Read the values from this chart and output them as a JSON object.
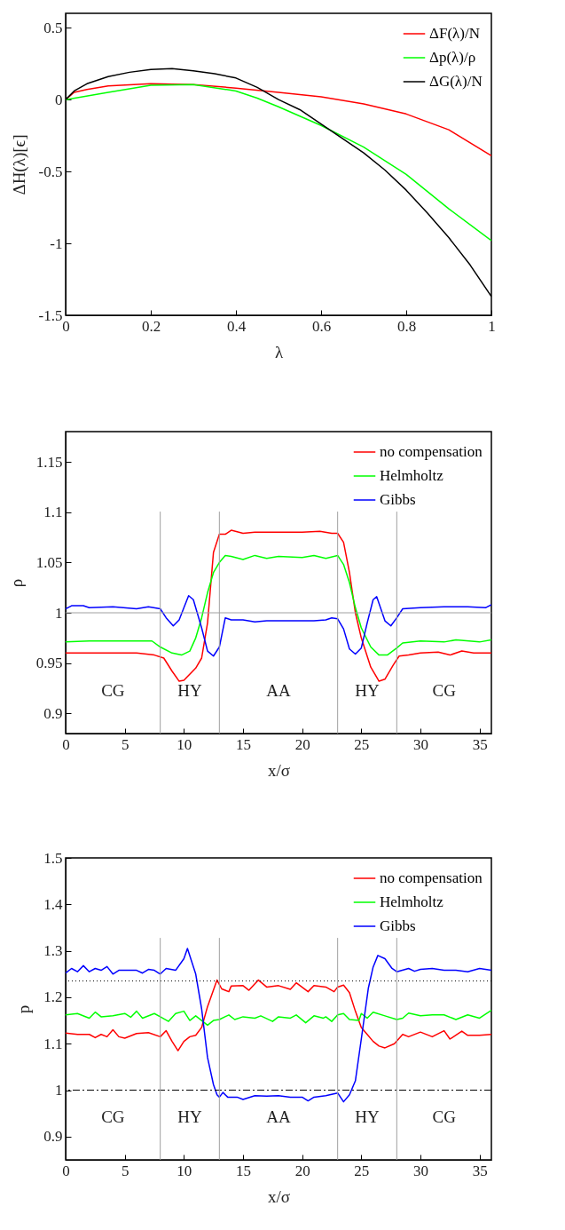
{
  "chart_data": [
    {
      "type": "line",
      "xlabel": "λ",
      "ylabel": "ΔH(λ)[ϵ]",
      "xlim": [
        0,
        1
      ],
      "ylim": [
        -1.5,
        0.6
      ],
      "xticks": [
        0,
        0.2,
        0.4,
        0.6,
        0.8,
        1
      ],
      "yticks": [
        -1.5,
        -1,
        -0.5,
        0,
        0.5
      ],
      "grid": false,
      "legend": "top right",
      "marker": "none",
      "series": [
        {
          "name": "ΔF(λ)/N",
          "color": "#ff0000",
          "x": [
            0,
            0.02,
            0.05,
            0.1,
            0.2,
            0.3,
            0.4,
            0.5,
            0.6,
            0.7,
            0.8,
            0.9,
            1
          ],
          "values": [
            0,
            0.05,
            0.07,
            0.095,
            0.11,
            0.105,
            0.08,
            0.05,
            0.02,
            -0.03,
            -0.1,
            -0.21,
            -0.39
          ]
        },
        {
          "name": "Δp(λ)/ρ",
          "color": "#00ff00",
          "x": [
            0,
            0.1,
            0.2,
            0.3,
            0.4,
            0.45,
            0.5,
            0.6,
            0.7,
            0.8,
            0.9,
            1
          ],
          "values": [
            0,
            0.05,
            0.1,
            0.105,
            0.06,
            0.01,
            -0.05,
            -0.18,
            -0.33,
            -0.52,
            -0.76,
            -0.98
          ]
        },
        {
          "name": "ΔG(λ)/N",
          "color": "#000000",
          "x": [
            0,
            0.02,
            0.05,
            0.1,
            0.15,
            0.2,
            0.25,
            0.3,
            0.35,
            0.4,
            0.45,
            0.5,
            0.55,
            0.6,
            0.65,
            0.7,
            0.75,
            0.8,
            0.85,
            0.9,
            0.95,
            1
          ],
          "values": [
            0,
            0.06,
            0.11,
            0.16,
            0.19,
            0.21,
            0.215,
            0.2,
            0.18,
            0.15,
            0.085,
            0,
            -0.07,
            -0.17,
            -0.27,
            -0.37,
            -0.49,
            -0.63,
            -0.79,
            -0.96,
            -1.15,
            -1.37
          ]
        }
      ]
    },
    {
      "type": "line",
      "xlabel": "x/σ",
      "ylabel": "ρ",
      "xlim": [
        0,
        36
      ],
      "ylim": [
        0.88,
        1.18
      ],
      "xticks": [
        0,
        5,
        10,
        15,
        20,
        25,
        30,
        35
      ],
      "yticks": [
        0.9,
        0.95,
        1,
        1.05,
        1.1,
        1.15
      ],
      "grid": false,
      "legend": "top right",
      "marker": "none",
      "ref_lines": [
        {
          "axis": "y",
          "value": 1,
          "color": "#a0a0a0"
        },
        {
          "axis": "x",
          "value": 8,
          "color": "#a0a0a0"
        },
        {
          "axis": "x",
          "value": 13,
          "color": "#a0a0a0"
        },
        {
          "axis": "x",
          "value": 23,
          "color": "#a0a0a0"
        },
        {
          "axis": "x",
          "value": 28,
          "color": "#a0a0a0"
        }
      ],
      "annotations": [
        "CG",
        "HY",
        "AA",
        "HY",
        "CG"
      ],
      "series": [
        {
          "name": "no compensation",
          "color": "#ff0000",
          "x": [
            0,
            2,
            4,
            6,
            7.5,
            8.3,
            9,
            9.6,
            10,
            11,
            11.5,
            12,
            12.5,
            13,
            13.5,
            14,
            15,
            16,
            18,
            20,
            21.5,
            22.5,
            23,
            23.5,
            24,
            24.5,
            25,
            25.8,
            26.5,
            27,
            27.7,
            28.2,
            29,
            30,
            31.5,
            32.5,
            33.5,
            34.5,
            36
          ],
          "values": [
            0.96,
            0.96,
            0.96,
            0.96,
            0.958,
            0.955,
            0.942,
            0.932,
            0.933,
            0.945,
            0.955,
            0.99,
            1.06,
            1.078,
            1.078,
            1.082,
            1.079,
            1.08,
            1.08,
            1.08,
            1.081,
            1.079,
            1.079,
            1.07,
            1.04,
            1.0,
            0.975,
            0.946,
            0.932,
            0.934,
            0.948,
            0.957,
            0.958,
            0.96,
            0.961,
            0.958,
            0.962,
            0.96,
            0.96
          ]
        },
        {
          "name": "Helmholtz",
          "color": "#00ff00",
          "x": [
            0,
            2,
            5,
            7.3,
            8,
            9,
            9.8,
            10.5,
            11,
            11.5,
            12,
            12.5,
            13,
            13.5,
            14,
            15,
            16,
            17,
            18,
            20,
            21,
            22,
            23,
            23.5,
            24,
            24.5,
            25,
            25.8,
            26.5,
            27.2,
            28,
            28.5,
            30,
            32,
            33,
            35,
            36
          ],
          "values": [
            0.971,
            0.972,
            0.972,
            0.972,
            0.966,
            0.96,
            0.958,
            0.962,
            0.975,
            0.995,
            1.02,
            1.04,
            1.05,
            1.057,
            1.056,
            1.053,
            1.057,
            1.054,
            1.056,
            1.055,
            1.057,
            1.054,
            1.057,
            1.048,
            1.03,
            1.005,
            0.985,
            0.966,
            0.958,
            0.958,
            0.965,
            0.97,
            0.972,
            0.971,
            0.973,
            0.971,
            0.973
          ]
        },
        {
          "name": "Gibbs",
          "color": "#0000ff",
          "x": [
            0,
            0.5,
            1.5,
            2,
            4,
            6,
            7,
            8,
            8.5,
            9.1,
            9.6,
            10,
            10.4,
            10.8,
            11.5,
            12,
            12.5,
            13,
            13.5,
            14,
            15,
            16,
            17,
            18,
            20,
            21,
            22,
            22.5,
            23,
            23.5,
            24,
            24.5,
            25,
            25.5,
            26,
            26.3,
            27,
            27.5,
            28,
            28.5,
            30,
            32,
            34,
            35.5,
            36
          ],
          "values": [
            1.004,
            1.007,
            1.007,
            1.005,
            1.006,
            1.004,
            1.006,
            1.004,
            0.995,
            0.987,
            0.993,
            1.005,
            1.017,
            1.013,
            0.985,
            0.962,
            0.957,
            0.966,
            0.995,
            0.993,
            0.993,
            0.991,
            0.992,
            0.992,
            0.992,
            0.992,
            0.993,
            0.995,
            0.994,
            0.984,
            0.964,
            0.959,
            0.965,
            0.99,
            1.013,
            1.016,
            0.992,
            0.987,
            0.995,
            1.004,
            1.005,
            1.006,
            1.006,
            1.005,
            1.008
          ]
        }
      ]
    },
    {
      "type": "line",
      "xlabel": "x/σ",
      "ylabel": "p",
      "xlim": [
        0,
        36
      ],
      "ylim": [
        0.85,
        1.5
      ],
      "xticks": [
        0,
        5,
        10,
        15,
        20,
        25,
        30,
        35
      ],
      "yticks": [
        0.9,
        1,
        1.1,
        1.2,
        1.3,
        1.4,
        1.5
      ],
      "grid": false,
      "legend": "top right",
      "marker": "none",
      "ref_lines": [
        {
          "axis": "y",
          "value": 1.235,
          "color": "#000000",
          "line_style": "dotted"
        },
        {
          "axis": "y",
          "value": 1,
          "color": "#000000",
          "line_style": "dashdot"
        },
        {
          "axis": "x",
          "value": 8,
          "color": "#a0a0a0"
        },
        {
          "axis": "x",
          "value": 13,
          "color": "#a0a0a0"
        },
        {
          "axis": "x",
          "value": 23,
          "color": "#a0a0a0"
        },
        {
          "axis": "x",
          "value": 28,
          "color": "#a0a0a0"
        }
      ],
      "annotations": [
        "CG",
        "HY",
        "AA",
        "HY",
        "CG"
      ],
      "series": [
        {
          "name": "no compensation",
          "color": "#ff0000",
          "x": [
            0,
            1,
            2,
            2.5,
            3,
            3.5,
            4,
            4.5,
            5,
            6,
            7,
            8,
            8.5,
            9,
            9.5,
            10,
            10.5,
            11,
            11.5,
            12,
            12.8,
            13.2,
            13.8,
            14,
            15,
            15.5,
            16.3,
            17,
            18,
            19,
            19.5,
            20.5,
            21,
            22,
            22.7,
            23,
            23.5,
            24,
            24.5,
            25,
            25.5,
            26,
            26.5,
            27,
            27.8,
            28.5,
            29,
            30,
            31,
            32,
            32.5,
            33.5,
            34,
            35,
            36
          ],
          "values": [
            1.123,
            1.12,
            1.12,
            1.113,
            1.12,
            1.115,
            1.13,
            1.115,
            1.112,
            1.122,
            1.124,
            1.115,
            1.128,
            1.105,
            1.085,
            1.105,
            1.115,
            1.118,
            1.135,
            1.18,
            1.237,
            1.218,
            1.212,
            1.224,
            1.225,
            1.215,
            1.237,
            1.222,
            1.225,
            1.217,
            1.231,
            1.212,
            1.225,
            1.222,
            1.212,
            1.222,
            1.226,
            1.21,
            1.17,
            1.135,
            1.12,
            1.105,
            1.095,
            1.091,
            1.1,
            1.12,
            1.115,
            1.125,
            1.115,
            1.128,
            1.11,
            1.127,
            1.118,
            1.118,
            1.12
          ]
        },
        {
          "name": "Helmholtz",
          "color": "#00ff00",
          "x": [
            0,
            1,
            2,
            2.5,
            3,
            4,
            5,
            5.5,
            6,
            6.5,
            7.5,
            8,
            8.7,
            9.3,
            10,
            10.5,
            11,
            12,
            12.5,
            13,
            13.8,
            14.3,
            15,
            16,
            16.5,
            17.5,
            18,
            19,
            19.5,
            20.3,
            21,
            21.8,
            22,
            22.5,
            23,
            23.5,
            24,
            24.8,
            25,
            25.5,
            26,
            27,
            28,
            28.5,
            29,
            30,
            31,
            32,
            33,
            34,
            35,
            36
          ],
          "values": [
            1.162,
            1.165,
            1.155,
            1.168,
            1.158,
            1.16,
            1.165,
            1.157,
            1.17,
            1.155,
            1.165,
            1.158,
            1.148,
            1.165,
            1.17,
            1.15,
            1.16,
            1.14,
            1.15,
            1.152,
            1.162,
            1.152,
            1.158,
            1.155,
            1.16,
            1.148,
            1.158,
            1.155,
            1.162,
            1.145,
            1.16,
            1.155,
            1.158,
            1.148,
            1.162,
            1.165,
            1.152,
            1.15,
            1.165,
            1.155,
            1.168,
            1.16,
            1.152,
            1.155,
            1.166,
            1.16,
            1.162,
            1.162,
            1.152,
            1.162,
            1.155,
            1.172
          ]
        },
        {
          "name": "Gibbs",
          "color": "#0000ff",
          "x": [
            0,
            0.5,
            1,
            1.5,
            2,
            2.5,
            3,
            3.5,
            4,
            4.5,
            5,
            6,
            6.5,
            7,
            7.5,
            8,
            8.5,
            9.3,
            10,
            10.3,
            11,
            11.5,
            12,
            12.5,
            12.8,
            13,
            13.3,
            13.7,
            14.5,
            15,
            16,
            17,
            18,
            19,
            20,
            20.5,
            21,
            22,
            23,
            23.5,
            24,
            24.5,
            25,
            25.6,
            26,
            26.4,
            27,
            27.6,
            28,
            29,
            29.5,
            30,
            31,
            32,
            33,
            34,
            35,
            36
          ],
          "values": [
            1.252,
            1.262,
            1.255,
            1.268,
            1.255,
            1.262,
            1.258,
            1.266,
            1.25,
            1.258,
            1.258,
            1.258,
            1.252,
            1.26,
            1.258,
            1.25,
            1.262,
            1.258,
            1.283,
            1.305,
            1.25,
            1.175,
            1.07,
            1.012,
            0.99,
            0.985,
            0.995,
            0.985,
            0.985,
            0.98,
            0.988,
            0.987,
            0.988,
            0.985,
            0.985,
            0.977,
            0.985,
            0.988,
            0.994,
            0.975,
            0.99,
            1.02,
            1.11,
            1.22,
            1.265,
            1.29,
            1.283,
            1.262,
            1.255,
            1.262,
            1.256,
            1.26,
            1.262,
            1.258,
            1.258,
            1.255,
            1.262,
            1.258
          ]
        }
      ]
    }
  ]
}
